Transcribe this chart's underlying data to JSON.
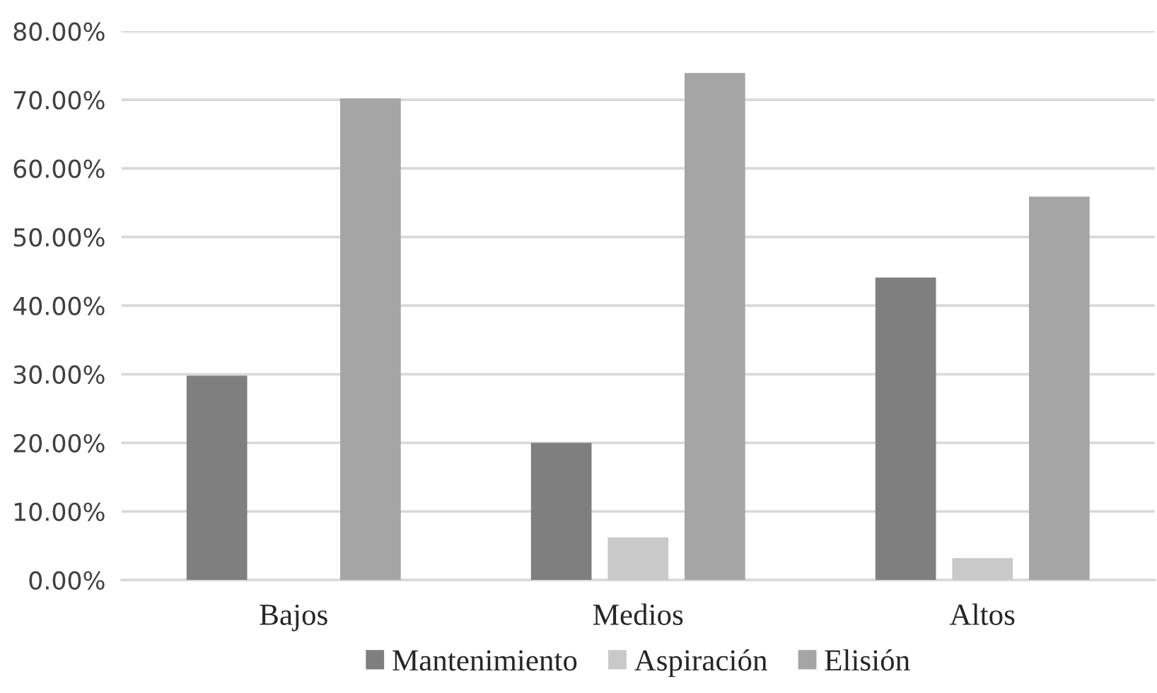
{
  "chart_data": {
    "type": "bar",
    "categories": [
      "Bajos",
      "Medios",
      "Altos"
    ],
    "series": [
      {
        "name": "Mantenimiento",
        "color": "#7f7f7f",
        "values": [
          29.8,
          20.0,
          44.1
        ]
      },
      {
        "name": "Aspiración",
        "color": "#c9c9c9",
        "values": [
          0,
          6.2,
          3.2
        ]
      },
      {
        "name": "Elisión",
        "color": "#a5a5a5",
        "values": [
          70.2,
          73.9,
          55.9
        ]
      }
    ],
    "ylim": [
      0,
      80
    ],
    "yticks": [
      {
        "value": 0,
        "label": "0.00%"
      },
      {
        "value": 10,
        "label": "10.00%"
      },
      {
        "value": 20,
        "label": "20.00%"
      },
      {
        "value": 30,
        "label": "30.00%"
      },
      {
        "value": 40,
        "label": "40.00%"
      },
      {
        "value": 50,
        "label": "50.00%"
      },
      {
        "value": 60,
        "label": "60.00%"
      },
      {
        "value": 70,
        "label": "70.00%"
      },
      {
        "value": 80,
        "label": "80.00%"
      }
    ],
    "grid": "y",
    "legend": "bottom"
  }
}
